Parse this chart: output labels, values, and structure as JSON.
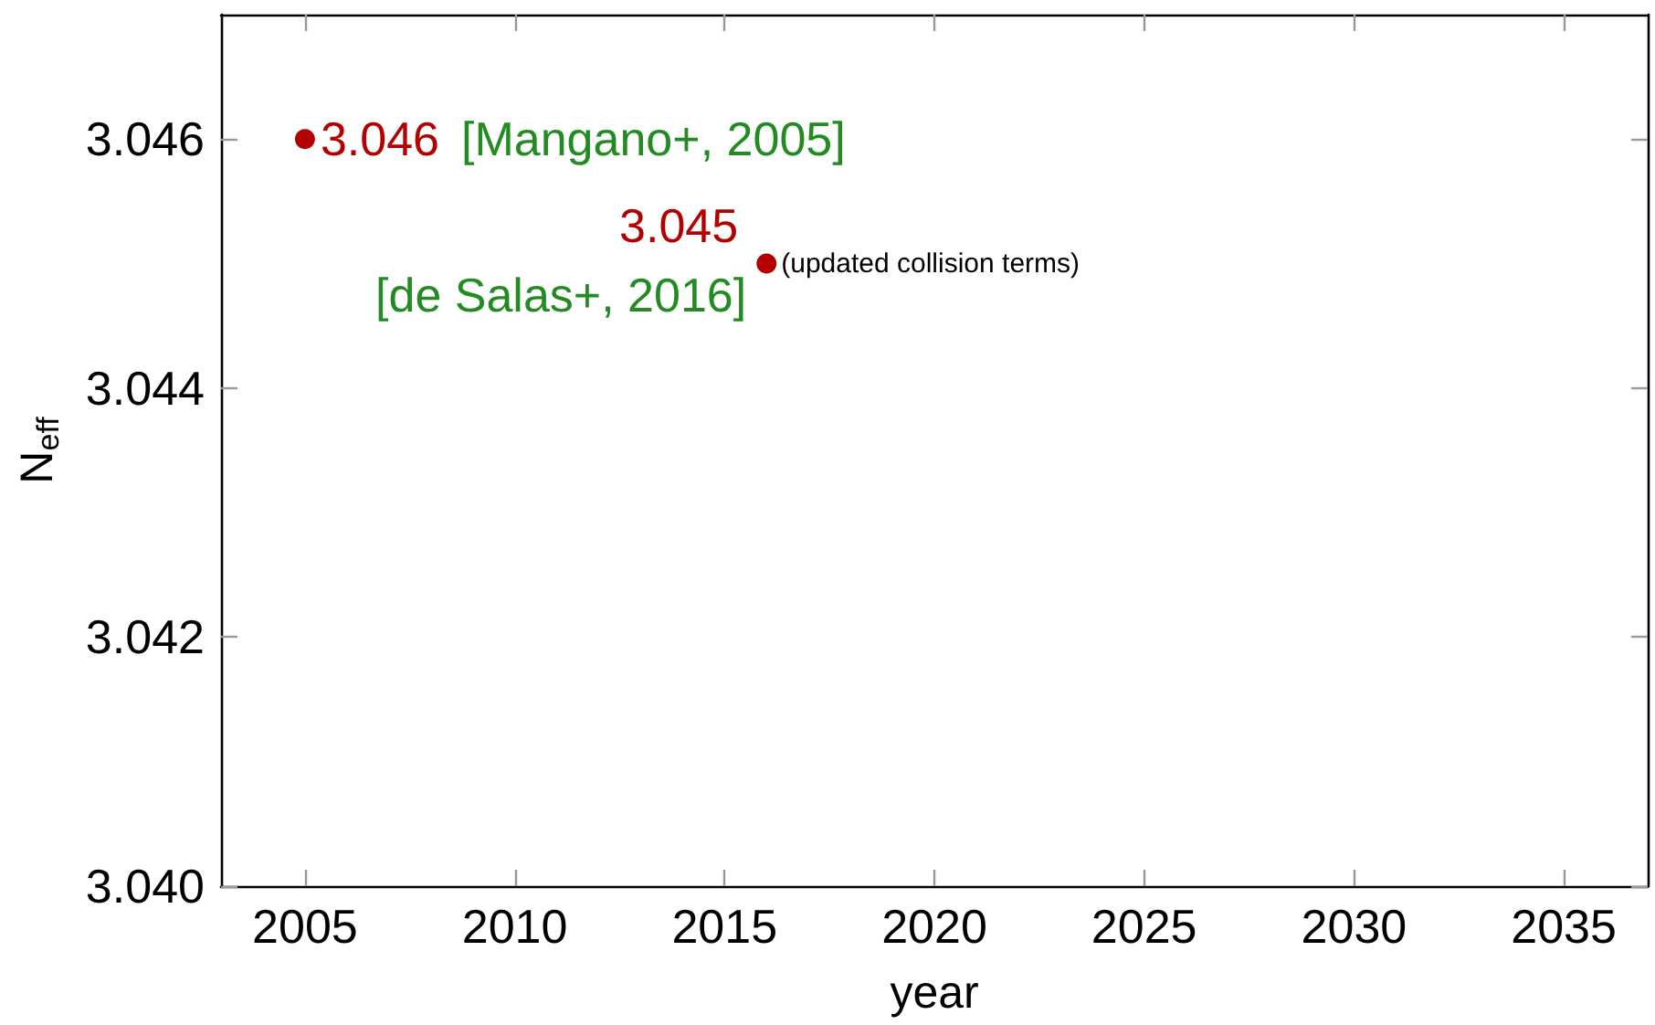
{
  "chart_data": {
    "type": "scatter",
    "xlabel": "year",
    "ylabel": "N$_{eff}$",
    "x": [
      2005,
      2016
    ],
    "series": [
      {
        "color": "#b30000",
        "values": [
          3.046,
          3.045
        ]
      }
    ],
    "data_labels": true,
    "marker": "circle",
    "xlim": [
      2003,
      2037
    ],
    "xticks": [
      2005,
      2010,
      2015,
      2020,
      2025,
      2030,
      2035
    ],
    "ylim": [
      3.04,
      3.047
    ],
    "yticks": [
      {
        "value": 3.04,
        "label": "3.040"
      },
      {
        "value": 3.042,
        "label": "3.042"
      },
      {
        "value": 3.044,
        "label": "3.044"
      },
      {
        "value": 3.046,
        "label": "3.046"
      }
    ],
    "annotations": [
      "[Mangano+, 2005]",
      {
        "text": "[de Salas+, 2016]",
        "x": 2016,
        "y": 3.045
      },
      {
        "text": "(updated collision terms)",
        "x": 2016,
        "y": 3.045
      }
    ]
  }
}
